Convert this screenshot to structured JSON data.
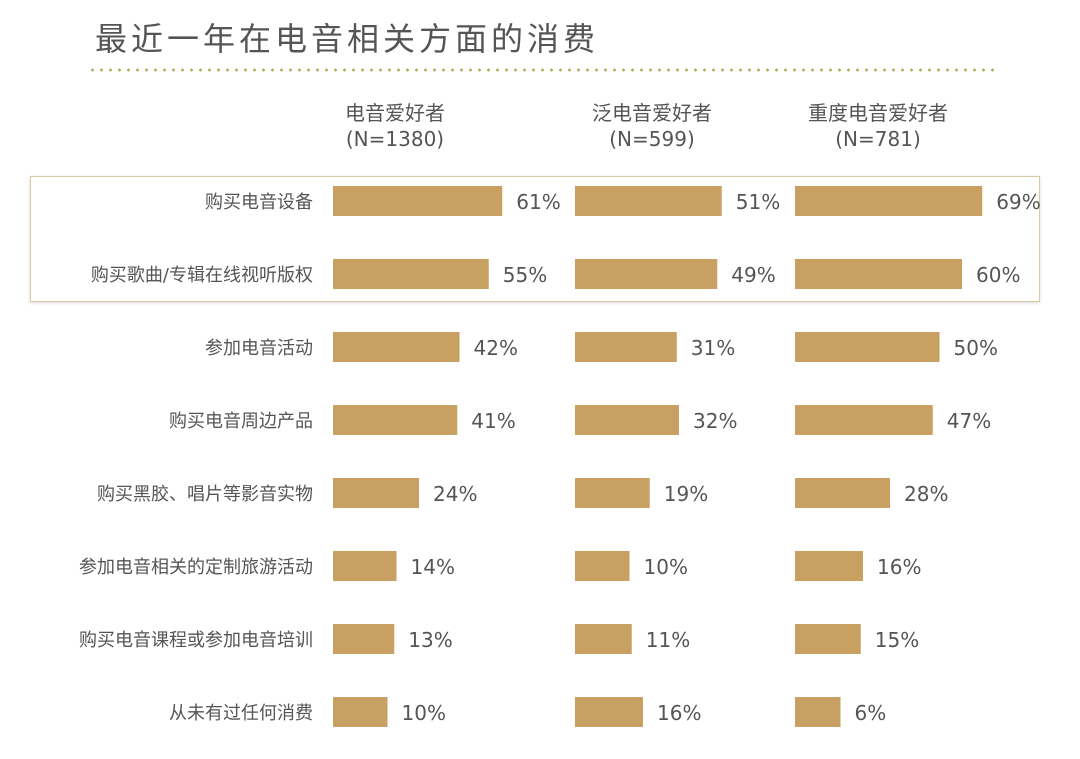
{
  "chart_data": {
    "type": "bar",
    "title": "最近一年在电音相关方面的消费",
    "categories": [
      "购买电音设备",
      "购买歌曲/专辑在线视听版权",
      "参加电音活动",
      "购买电音周边产品",
      "购买黑胶、唱片等影音实物",
      "参加电音相关的定制旅游活动",
      "购买电音课程或参加电音培训",
      "从未有过任何消费"
    ],
    "series": [
      {
        "name": "电音爱好者",
        "n": "(N=1380)",
        "values": [
          61,
          55,
          42,
          41,
          24,
          14,
          13,
          10
        ]
      },
      {
        "name": "泛电音爱好者",
        "n": "(N=599)",
        "values": [
          51,
          49,
          31,
          32,
          19,
          10,
          11,
          16
        ]
      },
      {
        "name": "重度电音爱好者",
        "n": "(N=781)",
        "values": [
          69,
          60,
          50,
          47,
          28,
          16,
          15,
          6
        ]
      }
    ],
    "unit": "%",
    "highlighted_categories": [
      0,
      1
    ],
    "bar_color": "#c8a062"
  }
}
